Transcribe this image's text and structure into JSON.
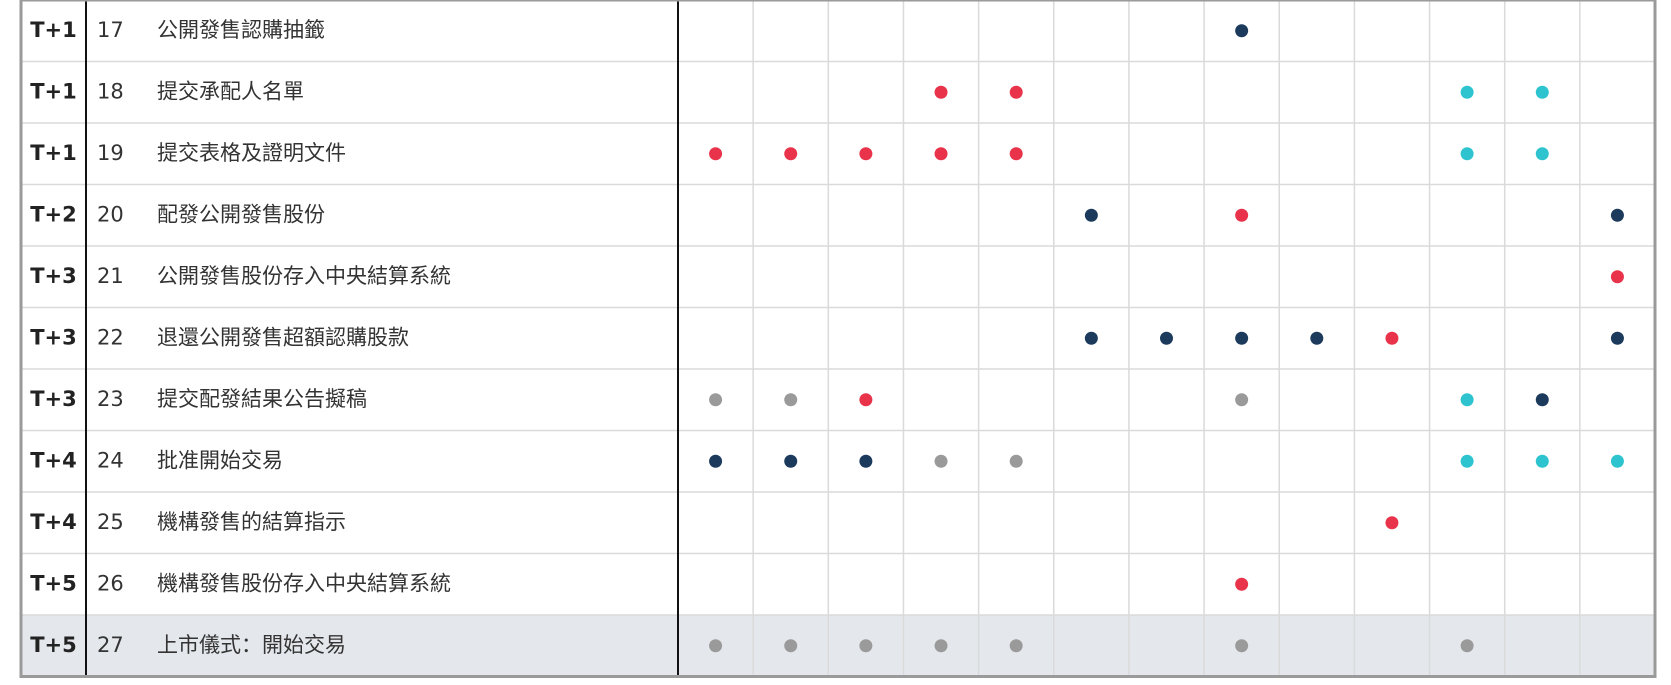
{
  "dot_colors": {
    "navy": "#1b3a5c",
    "red": "#e8334a",
    "cyan": "#2ec4cf",
    "gray": "#9a9a9a"
  },
  "highlight_row_color": "#e4e8ec",
  "rows": [
    {
      "day": "T+1",
      "no": 17,
      "task": "公開發售認購抽籤",
      "dots": [
        null,
        null,
        null,
        null,
        null,
        null,
        null,
        "navy",
        null,
        null,
        null,
        null,
        null
      ]
    },
    {
      "day": "T+1",
      "no": 18,
      "task": "提交承配人名單",
      "dots": [
        null,
        null,
        null,
        "red",
        "red",
        null,
        null,
        null,
        null,
        null,
        "cyan",
        "cyan",
        null
      ]
    },
    {
      "day": "T+1",
      "no": 19,
      "task": "提交表格及證明文件",
      "dots": [
        "red",
        "red",
        "red",
        "red",
        "red",
        null,
        null,
        null,
        null,
        null,
        "cyan",
        "cyan",
        null
      ]
    },
    {
      "day": "T+2",
      "no": 20,
      "task": "配發公開發售股份",
      "dots": [
        null,
        null,
        null,
        null,
        null,
        "navy",
        null,
        "red",
        null,
        null,
        null,
        null,
        "navy"
      ]
    },
    {
      "day": "T+3",
      "no": 21,
      "task": "公開發售股份存入中央結算系統",
      "dots": [
        null,
        null,
        null,
        null,
        null,
        null,
        null,
        null,
        null,
        null,
        null,
        null,
        "red"
      ]
    },
    {
      "day": "T+3",
      "no": 22,
      "task": "退還公開發售超額認購股款",
      "dots": [
        null,
        null,
        null,
        null,
        null,
        "navy",
        "navy",
        "navy",
        "navy",
        "red",
        null,
        null,
        "navy"
      ]
    },
    {
      "day": "T+3",
      "no": 23,
      "task": "提交配發結果公告擬稿",
      "dots": [
        "gray",
        "gray",
        "red",
        null,
        null,
        null,
        null,
        "gray",
        null,
        null,
        "cyan",
        "navy",
        null
      ]
    },
    {
      "day": "T+4",
      "no": 24,
      "task": "批准開始交易",
      "dots": [
        "navy",
        "navy",
        "navy",
        "gray",
        "gray",
        null,
        null,
        null,
        null,
        null,
        "cyan",
        "cyan",
        "cyan"
      ]
    },
    {
      "day": "T+4",
      "no": 25,
      "task": "機構發售的結算指示",
      "dots": [
        null,
        null,
        null,
        null,
        null,
        null,
        null,
        null,
        null,
        "red",
        null,
        null,
        null
      ]
    },
    {
      "day": "T+5",
      "no": 26,
      "task": "機構發售股份存入中央結算系統",
      "dots": [
        null,
        null,
        null,
        null,
        null,
        null,
        null,
        "red",
        null,
        null,
        null,
        null,
        null
      ]
    },
    {
      "day": "T+5",
      "no": 27,
      "task": "上市儀式：開始交易",
      "dots": [
        "gray",
        "gray",
        "gray",
        "gray",
        "gray",
        null,
        null,
        "gray",
        null,
        null,
        "gray",
        null,
        null
      ],
      "highlight": true
    }
  ]
}
